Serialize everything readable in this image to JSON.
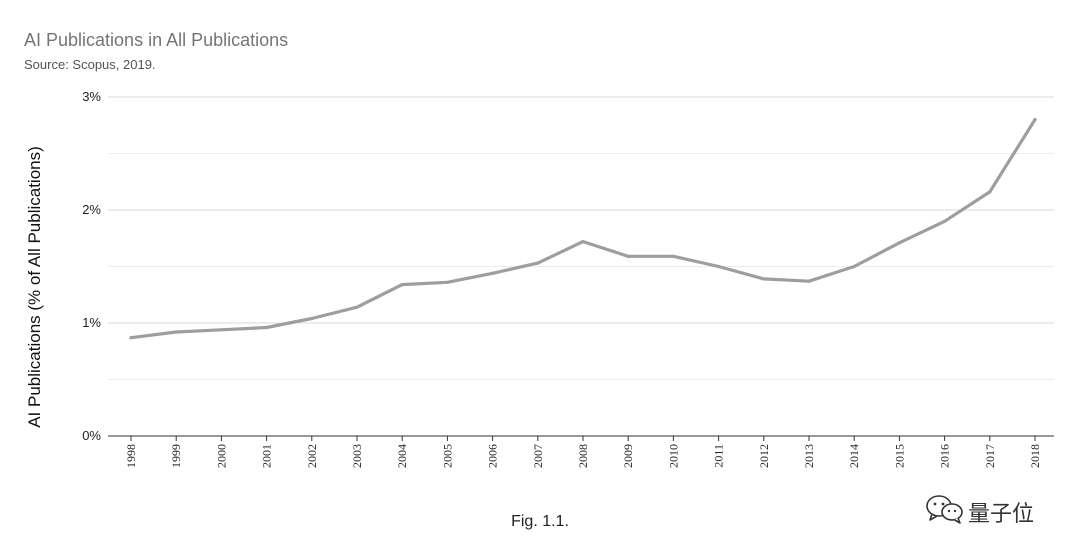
{
  "chart_data": {
    "type": "line",
    "title": "AI Publications in All Publications",
    "subtitle": "Source: Scopus, 2019.",
    "xlabel": "",
    "ylabel": "AI Publications (% of All Publications)",
    "x": [
      "1998",
      "1999",
      "2000",
      "2001",
      "2002",
      "2003",
      "2004",
      "2005",
      "2006",
      "2007",
      "2008",
      "2009",
      "2010",
      "2011",
      "2012",
      "2013",
      "2014",
      "2015",
      "2016",
      "2017",
      "2018"
    ],
    "series": [
      {
        "values": [
          0.87,
          0.92,
          0.94,
          0.96,
          1.04,
          1.14,
          1.34,
          1.36,
          1.44,
          1.53,
          1.72,
          1.59,
          1.59,
          1.5,
          1.39,
          1.37,
          1.5,
          1.71,
          1.9,
          2.16,
          2.8
        ]
      }
    ],
    "ylim": [
      0,
      3
    ],
    "yticks": [
      {
        "value": 0,
        "label": "0%"
      },
      {
        "value": 1,
        "label": "1%"
      },
      {
        "value": 2,
        "label": "2%"
      },
      {
        "value": 3,
        "label": "3%"
      }
    ],
    "grid": true,
    "legend": "none",
    "line_color": "#9e9e9e"
  },
  "caption": "Fig. 1.1.",
  "watermark": {
    "text": "量子位",
    "icon": "wechat-icon"
  }
}
